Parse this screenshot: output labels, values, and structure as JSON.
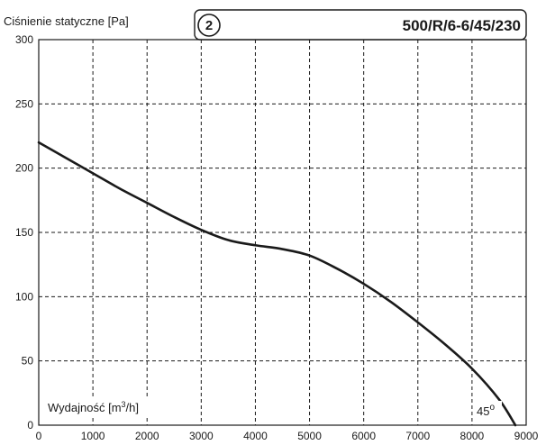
{
  "chart_data": {
    "type": "line",
    "title_code": "500/R/6-6/45/230",
    "badge": "2",
    "ylabel": "Ciśnienie statyczne [Pa]",
    "xlabel_prefix": "Wydajność [m",
    "xlabel_sup": "3",
    "xlabel_suffix": "/h]",
    "angle_label": "45",
    "angle_sup": "o",
    "xlim": [
      0,
      9000
    ],
    "ylim": [
      0,
      300
    ],
    "x_ticks": [
      "0",
      "1000",
      "2000",
      "3000",
      "4000",
      "5000",
      "6000",
      "7000",
      "8000",
      "9000"
    ],
    "y_ticks": [
      "0",
      "50",
      "100",
      "150",
      "200",
      "250",
      "300"
    ],
    "grid": true,
    "line_color": "#1a1a1a",
    "series": [
      {
        "x": [
          0,
          500,
          1000,
          1500,
          2000,
          2500,
          3000,
          3500,
          4000,
          4500,
          5000,
          5500,
          6000,
          6500,
          7000,
          7500,
          8000,
          8500,
          8800
        ],
        "y": [
          220,
          208,
          196,
          184,
          173,
          162,
          152,
          144,
          140,
          137,
          132,
          122,
          110,
          96,
          80,
          63,
          44,
          20,
          0
        ]
      }
    ]
  }
}
